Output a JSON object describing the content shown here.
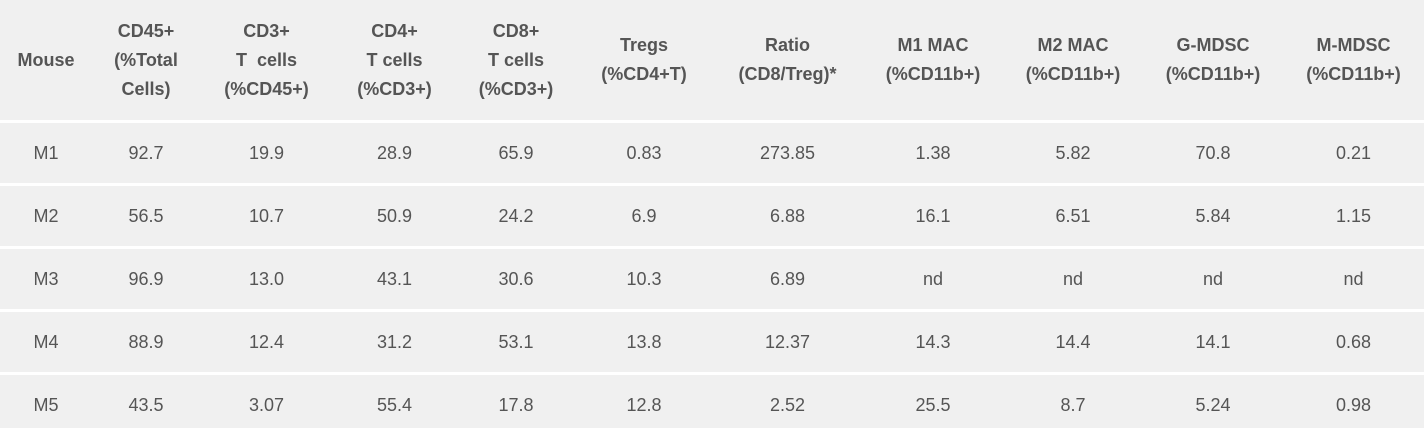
{
  "table": {
    "headers": [
      [
        "Mouse"
      ],
      [
        "CD45+",
        "(%Total",
        "Cells)"
      ],
      [
        "CD3+",
        "T  cells",
        "(%CD45+)"
      ],
      [
        "CD4+",
        "T cells",
        "(%CD3+)"
      ],
      [
        "CD8+",
        "T cells",
        "(%CD3+)"
      ],
      [
        "Tregs",
        "(%CD4+T)"
      ],
      [
        "Ratio",
        "(CD8/Treg)*"
      ],
      [
        "M1 MAC",
        "(%CD11b+)"
      ],
      [
        "M2 MAC",
        "(%CD11b+)"
      ],
      [
        "G-MDSC",
        "(%CD11b+)"
      ],
      [
        "M-MDSC",
        "(%CD11b+)"
      ]
    ],
    "rows": [
      [
        "M1",
        "92.7",
        "19.9",
        "28.9",
        "65.9",
        "0.83",
        "273.85",
        "1.38",
        "5.82",
        "70.8",
        "0.21"
      ],
      [
        "M2",
        "56.5",
        "10.7",
        "50.9",
        "24.2",
        "6.9",
        "6.88",
        "16.1",
        "6.51",
        "5.84",
        "1.15"
      ],
      [
        "M3",
        "96.9",
        "13.0",
        "43.1",
        "30.6",
        "10.3",
        "6.89",
        "nd",
        "nd",
        "nd",
        "nd"
      ],
      [
        "M4",
        "88.9",
        "12.4",
        "31.2",
        "53.1",
        "13.8",
        "12.37",
        "14.3",
        "14.4",
        "14.1",
        "0.68"
      ],
      [
        "M5",
        "43.5",
        "3.07",
        "55.4",
        "17.8",
        "12.8",
        "2.52",
        "25.5",
        "8.7",
        "5.24",
        "0.98"
      ]
    ]
  }
}
